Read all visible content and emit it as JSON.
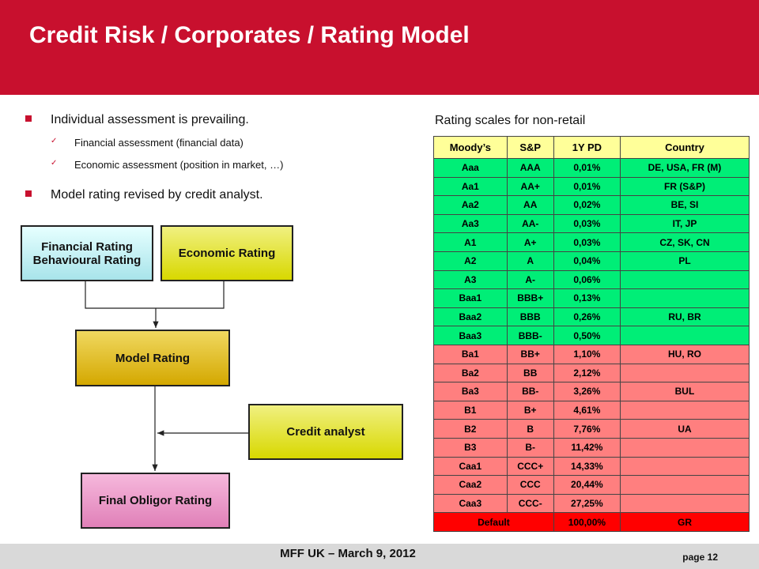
{
  "header": {
    "title": "Credit Risk / Corporates / Rating Model"
  },
  "bullets": [
    {
      "text": "Individual assessment is prevailing.",
      "sub": [
        "Financial assessment (financial data)",
        "Economic assessment (position in market, …)"
      ]
    },
    {
      "text": "Model rating revised by credit analyst."
    }
  ],
  "diagram": {
    "nodes": [
      {
        "lines": [
          "Financial Rating",
          "Behavioural Rating"
        ]
      },
      {
        "lines": [
          "Economic Rating"
        ]
      },
      {
        "lines": [
          "Model Rating"
        ]
      },
      {
        "lines": [
          "Credit analyst"
        ]
      },
      {
        "lines": [
          "Final Obligor Rating"
        ]
      }
    ]
  },
  "table": {
    "title": "Rating scales for non-retail",
    "columns": [
      "Moody’s",
      "S&P",
      "1Y PD",
      "Country"
    ],
    "rows": [
      {
        "cells": [
          "Aaa",
          "AAA",
          "0,01%",
          "DE, USA, FR (M)"
        ],
        "color": "#00ee77"
      },
      {
        "cells": [
          "Aa1",
          "AA+",
          "0,01%",
          "FR (S&P)"
        ],
        "color": "#00ee77"
      },
      {
        "cells": [
          "Aa2",
          "AA",
          "0,02%",
          "BE, SI"
        ],
        "color": "#00ee77"
      },
      {
        "cells": [
          "Aa3",
          "AA-",
          "0,03%",
          "IT, JP"
        ],
        "color": "#00ee77"
      },
      {
        "cells": [
          "A1",
          "A+",
          "0,03%",
          "CZ, SK, CN"
        ],
        "color": "#00ee77"
      },
      {
        "cells": [
          "A2",
          "A",
          "0,04%",
          "PL"
        ],
        "color": "#00ee77"
      },
      {
        "cells": [
          "A3",
          "A-",
          "0,06%",
          null
        ],
        "color": "#00ee77"
      },
      {
        "cells": [
          "Baa1",
          "BBB+",
          "0,13%",
          null
        ],
        "color": "#00ee77"
      },
      {
        "cells": [
          "Baa2",
          "BBB",
          "0,26%",
          "RU, BR"
        ],
        "color": "#00ee77"
      },
      {
        "cells": [
          "Baa3",
          "BBB-",
          "0,50%",
          null
        ],
        "color": "#00ee77"
      },
      {
        "cells": [
          "Ba1",
          "BB+",
          "1,10%",
          "HU, RO"
        ],
        "color": "#ff7f7f"
      },
      {
        "cells": [
          "Ba2",
          "BB",
          "2,12%",
          null
        ],
        "color": "#ff7f7f"
      },
      {
        "cells": [
          "Ba3",
          "BB-",
          "3,26%",
          "BUL"
        ],
        "color": "#ff7f7f"
      },
      {
        "cells": [
          "B1",
          "B+",
          "4,61%",
          null
        ],
        "color": "#ff7f7f"
      },
      {
        "cells": [
          "B2",
          "B",
          "7,76%",
          "UA"
        ],
        "color": "#ff7f7f"
      },
      {
        "cells": [
          "B3",
          "B-",
          "11,42%",
          null
        ],
        "color": "#ff7f7f"
      },
      {
        "cells": [
          "Caa1",
          "CCC+",
          "14,33%",
          null
        ],
        "color": "#ff7f7f"
      },
      {
        "cells": [
          "Caa2",
          "CCC",
          "20,44%",
          null
        ],
        "color": "#ff7f7f"
      },
      {
        "cells": [
          "Caa3",
          "CCC-",
          "27,25%",
          null
        ],
        "color": "#ff7f7f"
      },
      {
        "cells": [
          "Default",
          "100,00%",
          "GR"
        ],
        "color": "#ff0000"
      }
    ]
  },
  "footer": {
    "text": "MFF UK – March 9, 2012",
    "page": "page 12"
  }
}
